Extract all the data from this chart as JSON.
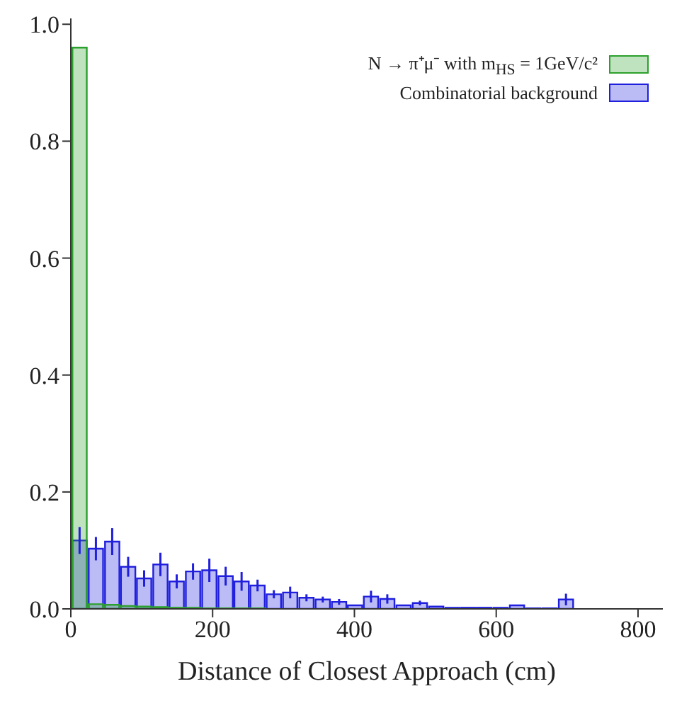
{
  "chart_data": {
    "type": "histogram",
    "xlabel": "Distance of Closest Approach (cm)",
    "bins": [
      0,
      23,
      46,
      69,
      91,
      114,
      137,
      160,
      183,
      206,
      229,
      251,
      274,
      297,
      320,
      343,
      366,
      389,
      411,
      434,
      457,
      480,
      503,
      526,
      549,
      571,
      594,
      617,
      640,
      663,
      686,
      709
    ],
    "series": [
      {
        "name": "N → π⁺μ⁻ with m$_{HS}$ = 1GeV/c²",
        "color": "#2ca02c",
        "values": [
          0.96,
          0.008,
          0.007,
          0.005,
          0.004,
          0.003,
          0.002,
          0.002,
          0.001,
          0.001,
          0.001,
          0.001,
          0,
          0,
          0,
          0,
          0,
          0,
          0,
          0,
          0,
          0,
          0,
          0,
          0,
          0,
          0,
          0,
          0,
          0,
          0
        ]
      },
      {
        "name": "Combinatorial background",
        "color": "#1f1fdd",
        "values": [
          0.117,
          0.103,
          0.115,
          0.072,
          0.052,
          0.076,
          0.047,
          0.064,
          0.066,
          0.056,
          0.047,
          0.04,
          0.025,
          0.028,
          0.019,
          0.016,
          0.012,
          0.006,
          0.021,
          0.017,
          0.006,
          0.01,
          0.004,
          0.002,
          0.002,
          0.002,
          0.002,
          0.006,
          0.001,
          0.001,
          0.016
        ],
        "errors": [
          0.023,
          0.02,
          0.023,
          0.017,
          0.014,
          0.02,
          0.012,
          0.014,
          0.02,
          0.016,
          0.016,
          0.01,
          0.007,
          0.01,
          0.006,
          0.005,
          0.005,
          null,
          0.01,
          0.008,
          null,
          0.004,
          null,
          null,
          null,
          null,
          null,
          null,
          null,
          null,
          0.01
        ]
      }
    ],
    "xlim": [
      0,
      835
    ],
    "xticks": [
      0,
      200,
      400,
      600,
      800
    ],
    "ylim": [
      0,
      1.01
    ],
    "yticks": [
      {
        "value": 0,
        "label": "0.0"
      },
      {
        "value": 0.2,
        "label": "0.2"
      },
      {
        "value": 0.4,
        "label": "0.4"
      },
      {
        "value": 0.6,
        "label": "0.6"
      },
      {
        "value": 0.8,
        "label": "0.8"
      },
      {
        "value": 1,
        "label": "1.0"
      }
    ],
    "legend": "top right"
  }
}
